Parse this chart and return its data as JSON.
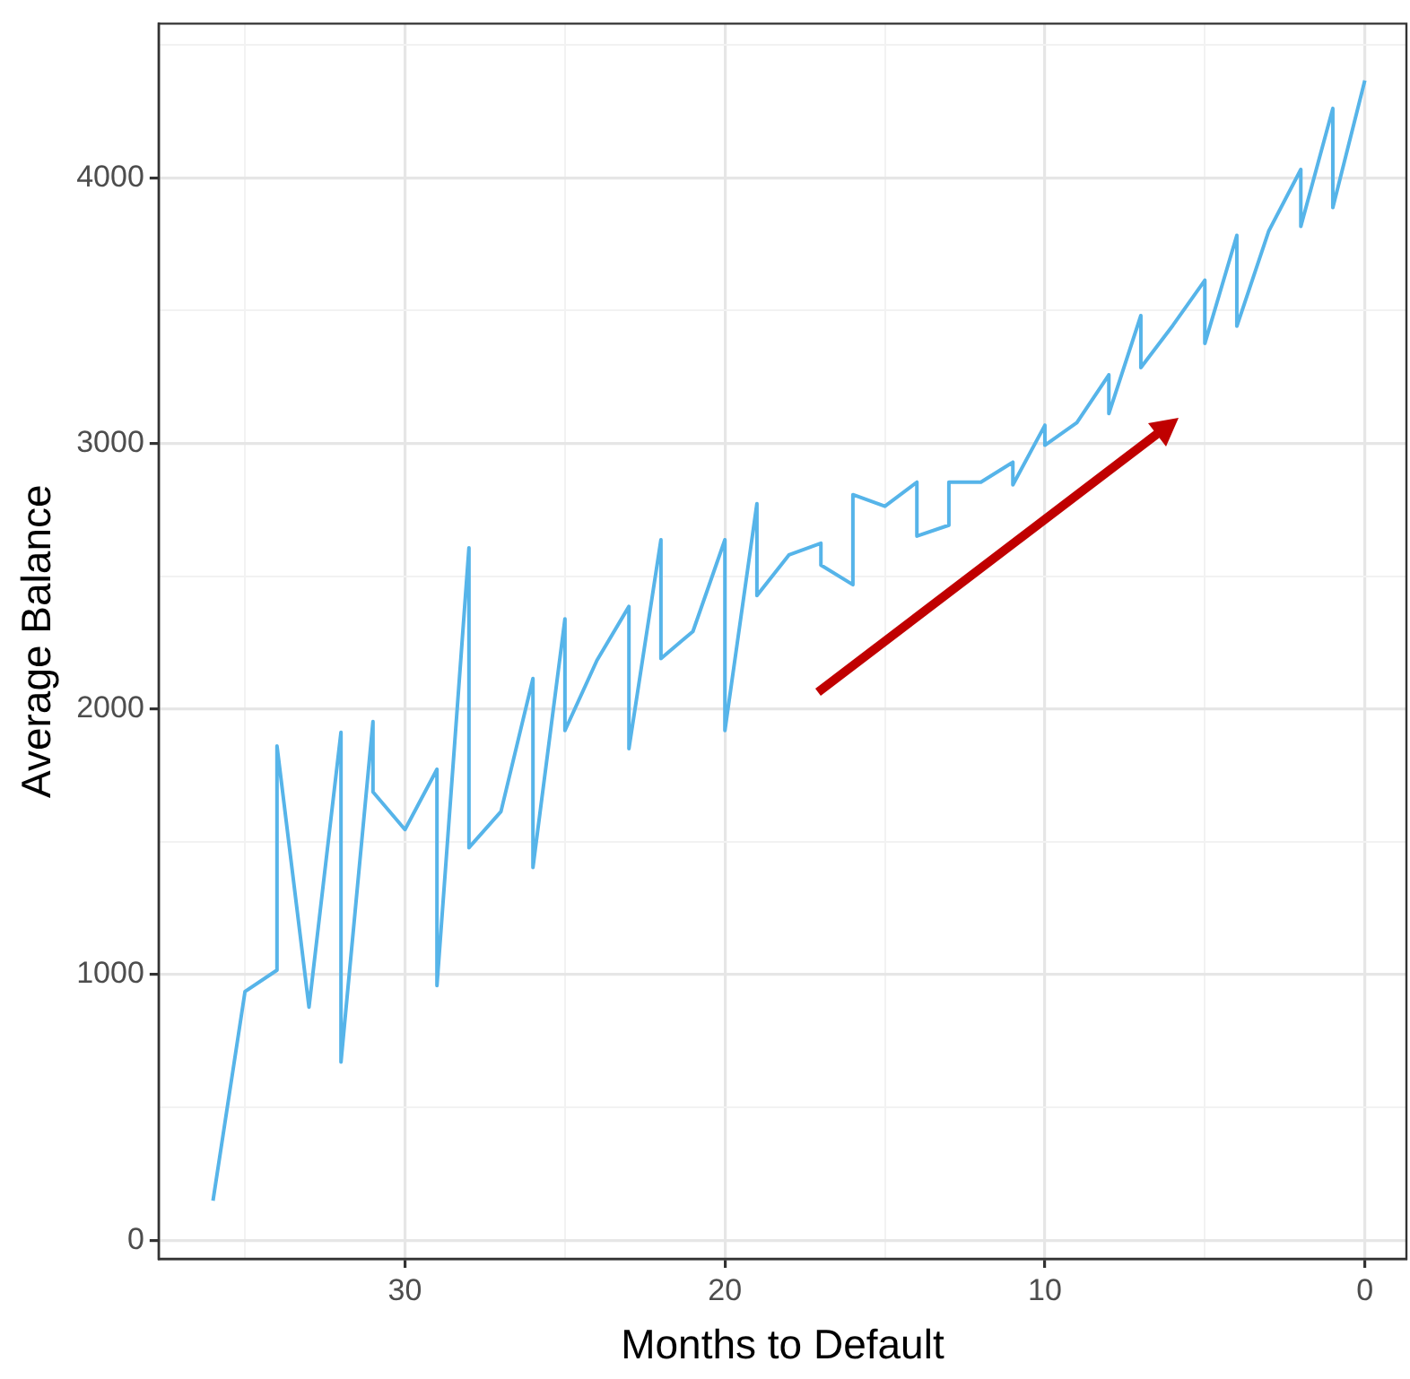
{
  "chart_data": {
    "type": "line",
    "xlabel": "Months to Default",
    "ylabel": "Average Balance",
    "x": [
      36,
      35,
      34,
      34,
      33,
      32,
      32,
      31,
      31,
      30,
      29,
      29,
      28,
      28,
      27,
      26,
      26,
      25,
      25,
      24,
      23,
      23,
      22,
      22,
      21,
      20,
      20,
      19,
      19,
      18,
      17,
      17,
      16,
      16,
      15,
      14,
      14,
      13,
      13,
      12,
      11,
      11,
      10,
      10,
      9,
      8,
      8,
      7,
      7,
      6,
      5,
      5,
      4,
      4,
      3,
      2,
      2,
      1,
      1,
      0
    ],
    "series": [
      {
        "color": "#56b4e9",
        "values": [
          149,
          936,
          1017,
          1861,
          878,
          1912,
          671,
          1953,
          1688,
          1546,
          1773,
          959,
          2607,
          1478,
          1614,
          2115,
          1403,
          2339,
          1919,
          2183,
          2386,
          1851,
          2637,
          2190,
          2292,
          2637,
          1919,
          2773,
          2427,
          2580,
          2624,
          2542,
          2468,
          2807,
          2763,
          2854,
          2651,
          2692,
          2854,
          2854,
          2929,
          2844,
          3068,
          2993,
          3078,
          3258,
          3112,
          3481,
          3285,
          3444,
          3614,
          3376,
          3783,
          3441,
          3800,
          4031,
          3817,
          4261,
          3888,
          4366
        ]
      }
    ],
    "xlim": [
      37.7,
      -1.3
    ],
    "ylim": [
      -70,
      4580
    ],
    "xticks": [
      {
        "value": 35,
        "label": null
      },
      30,
      {
        "value": 25,
        "label": null
      },
      20,
      {
        "value": 15,
        "label": null
      },
      10,
      {
        "value": 5,
        "label": null
      },
      0
    ],
    "yticks": [
      0,
      {
        "value": 500,
        "label": null
      },
      1000,
      {
        "value": 1500,
        "label": null
      },
      2000,
      {
        "value": 2500,
        "label": null
      },
      3000,
      {
        "value": 3500,
        "label": null
      },
      4000,
      {
        "value": 4500,
        "label": null
      }
    ],
    "grid": true,
    "legend": false,
    "marker": "none",
    "line_style": "solid"
  }
}
